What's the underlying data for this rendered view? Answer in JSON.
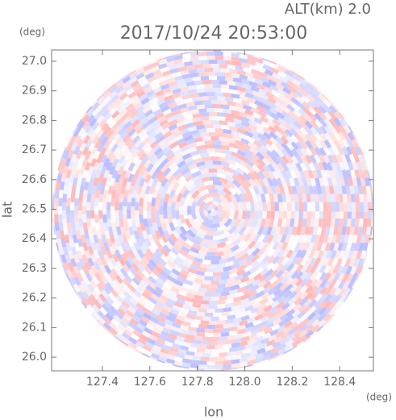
{
  "chart_data": {
    "type": "radar",
    "title": "2017/10/24 20:53:00",
    "subtitle": "ALT(km) 2.0",
    "x_label": "lon",
    "y_label": "lat",
    "x_unit": "(deg)",
    "y_unit": "(deg)",
    "xlim": [
      127.186,
      128.542
    ],
    "ylim": [
      25.954,
      27.038
    ],
    "xticks": [
      127.4,
      127.6,
      127.8,
      {
        "value": 128.0,
        "label": "128.0"
      },
      128.2,
      128.4
    ],
    "yticks": [
      {
        "value": 26.0,
        "label": "26.0"
      },
      26.1,
      26.2,
      26.3,
      26.4,
      26.5,
      26.6,
      26.7,
      26.8,
      26.9,
      {
        "value": 27.0,
        "label": "27.0"
      }
    ],
    "colors": [
      "#ffb8b8",
      "#ffffff",
      "#b8bcff"
    ]
  }
}
